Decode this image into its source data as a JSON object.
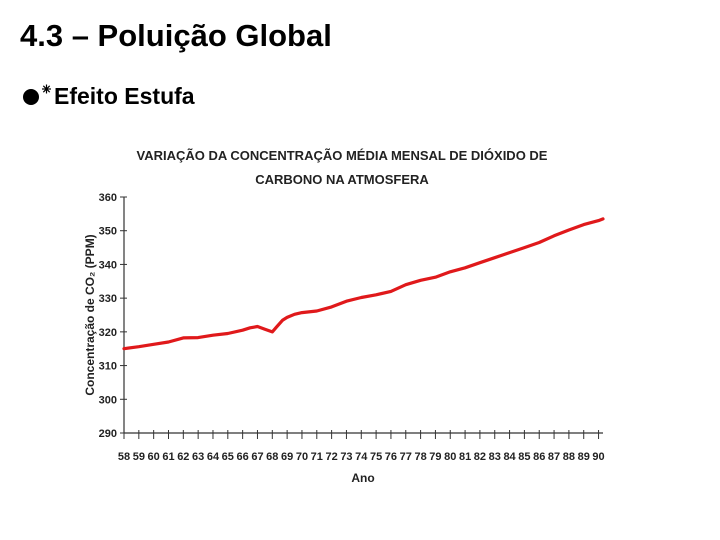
{
  "slide": {
    "title": "4.3 – Poluição Global",
    "bullet": {
      "icon": "sun-icon",
      "text": "Efeito Estufa"
    }
  },
  "colors": {
    "series_line": "#e0191b",
    "axis": "#333333",
    "background": "#ffffff"
  },
  "chart_data": {
    "type": "line",
    "title_lines": [
      "VARIAÇÃO DA CONCENTRAÇÃO MÉDIA MENSAL DE DIÓXIDO DE",
      "CARBONO NA ATMOSFERA"
    ],
    "xlabel": "Ano",
    "ylabel": "Concentração de CO₂ (PPM)",
    "ylim": [
      290,
      360
    ],
    "yticks": [
      290,
      300,
      310,
      320,
      330,
      340,
      350,
      360
    ],
    "x_tick_labels": [
      "58",
      "59",
      "60",
      "61",
      "62",
      "63",
      "64",
      "65",
      "66",
      "67",
      "68",
      "69",
      "70",
      "71",
      "72",
      "73",
      "74",
      "75",
      "76",
      "77",
      "78",
      "79",
      "80",
      "81",
      "82",
      "83",
      "84",
      "85",
      "86",
      "87",
      "88",
      "89",
      "90"
    ],
    "xlim": [
      1958,
      1990.3
    ],
    "legend": "none",
    "grid": false,
    "series": [
      {
        "x": [
          1958.0,
          1959.0,
          1960.0,
          1961.0,
          1962.0,
          1963.0,
          1964.0,
          1965.0,
          1966.0,
          1966.5,
          1967.0,
          1967.5,
          1968.0,
          1968.3,
          1968.7,
          1969.0,
          1969.5,
          1970.0,
          1971.0,
          1972.0,
          1973.0,
          1974.0,
          1975.0,
          1976.0,
          1977.0,
          1978.0,
          1979.0,
          1980.0,
          1981.0,
          1982.0,
          1983.0,
          1984.0,
          1985.0,
          1986.0,
          1987.0,
          1988.0,
          1989.0,
          1990.0,
          1990.3
        ],
        "y": [
          315.0,
          315.6,
          316.3,
          317.0,
          318.2,
          318.3,
          319.0,
          319.5,
          320.5,
          321.2,
          321.6,
          320.8,
          320.0,
          321.5,
          323.5,
          324.3,
          325.2,
          325.7,
          326.2,
          327.4,
          329.1,
          330.2,
          331.0,
          332.0,
          334.0,
          335.3,
          336.2,
          337.8,
          339.0,
          340.5,
          342.0,
          343.5,
          345.0,
          346.5,
          348.5,
          350.2,
          351.8,
          353.0,
          353.5
        ]
      }
    ]
  }
}
